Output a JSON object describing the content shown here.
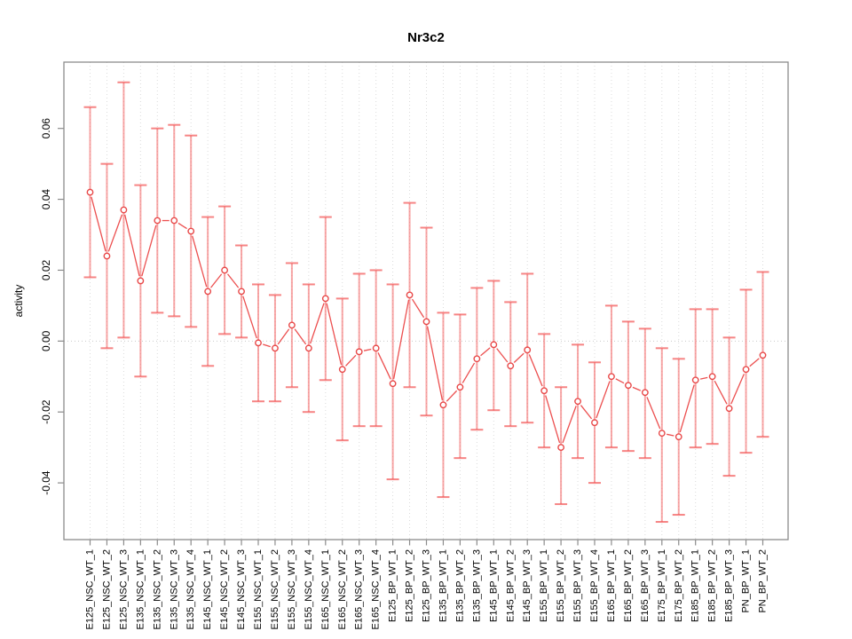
{
  "figure": {
    "background": "#ffffff"
  },
  "chart_data": {
    "type": "line",
    "subtype": "points-with-error-bars",
    "title": "Nr3c2",
    "xlabel": "",
    "ylabel": "activity",
    "ylim": [
      -0.056,
      0.0787
    ],
    "yticks": [
      0.06,
      0.04,
      0.02,
      0.0,
      -0.02,
      -0.04
    ],
    "ytick_labels": [
      "0.06",
      "0.04",
      "0.02",
      "0.00",
      "-0.02",
      "-0.04"
    ],
    "grid": "vertical dotted gridline at every category; dotted horizontal line at y=0",
    "legend_position": "none",
    "marker": "open-circle",
    "categories": [
      "E125_NSC_WT_1",
      "E125_NSC_WT_2",
      "E125_NSC_WT_3",
      "E135_NSC_WT_1",
      "E135_NSC_WT_2",
      "E135_NSC_WT_3",
      "E135_NSC_WT_4",
      "E145_NSC_WT_1",
      "E145_NSC_WT_2",
      "E145_NSC_WT_3",
      "E155_NSC_WT_1",
      "E155_NSC_WT_2",
      "E155_NSC_WT_3",
      "E155_NSC_WT_4",
      "E165_NSC_WT_1",
      "E165_NSC_WT_2",
      "E165_NSC_WT_3",
      "E165_NSC_WT_4",
      "E125_BP_WT_1",
      "E125_BP_WT_2",
      "E125_BP_WT_3",
      "E135_BP_WT_1",
      "E135_BP_WT_2",
      "E135_BP_WT_3",
      "E145_BP_WT_1",
      "E145_BP_WT_2",
      "E145_BP_WT_3",
      "E155_BP_WT_1",
      "E155_BP_WT_2",
      "E155_BP_WT_3",
      "E155_BP_WT_4",
      "E165_BP_WT_1",
      "E165_BP_WT_2",
      "E165_BP_WT_3",
      "E175_BP_WT_1",
      "E175_BP_WT_2",
      "E185_BP_WT_1",
      "E185_BP_WT_2",
      "E185_BP_WT_3",
      "PN_BP_WT_1",
      "PN_BP_WT_2"
    ],
    "series": [
      {
        "name": "activity",
        "values": [
          0.042,
          0.024,
          0.037,
          0.017,
          0.034,
          0.034,
          0.031,
          0.014,
          0.02,
          0.014,
          -0.0005,
          -0.002,
          0.0045,
          -0.002,
          0.012,
          -0.008,
          -0.003,
          -0.002,
          -0.012,
          0.013,
          0.0055,
          -0.018,
          -0.013,
          -0.005,
          -0.001,
          -0.007,
          -0.0025,
          -0.014,
          -0.03,
          -0.017,
          -0.023,
          -0.01,
          -0.0125,
          -0.0145,
          -0.026,
          -0.027,
          -0.011,
          -0.01,
          -0.019,
          -0.008,
          -0.004
        ],
        "lower": [
          0.018,
          -0.002,
          0.001,
          -0.01,
          0.008,
          0.007,
          0.004,
          -0.007,
          0.002,
          0.001,
          -0.017,
          -0.017,
          -0.013,
          -0.02,
          -0.011,
          -0.028,
          -0.024,
          -0.024,
          -0.039,
          -0.013,
          -0.021,
          -0.044,
          -0.033,
          -0.025,
          -0.0195,
          -0.024,
          -0.023,
          -0.03,
          -0.046,
          -0.033,
          -0.04,
          -0.03,
          -0.031,
          -0.033,
          -0.051,
          -0.049,
          -0.03,
          -0.029,
          -0.038,
          -0.0315,
          -0.027
        ],
        "upper": [
          0.066,
          0.05,
          0.073,
          0.044,
          0.06,
          0.061,
          0.058,
          0.035,
          0.038,
          0.027,
          0.016,
          0.013,
          0.022,
          0.016,
          0.035,
          0.012,
          0.019,
          0.02,
          0.016,
          0.039,
          0.032,
          0.008,
          0.0075,
          0.015,
          0.017,
          0.011,
          0.019,
          0.002,
          -0.013,
          -0.001,
          -0.006,
          0.01,
          0.0055,
          0.0035,
          -0.002,
          -0.005,
          0.009,
          0.009,
          0.001,
          0.0145,
          0.0195
        ]
      }
    ],
    "colors": {
      "point_stroke": "#e84848",
      "segment": "#ec4f4f",
      "error_bar": "#f25555",
      "gridline": "#dbdbdb",
      "axis_box": "#8b8b8b",
      "text": "#000000"
    }
  }
}
